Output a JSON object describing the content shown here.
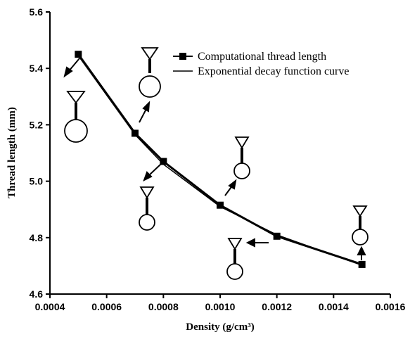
{
  "chart_data": {
    "type": "line",
    "title": "",
    "xlabel": "Density (g/cm³)",
    "ylabel": "Thread length (mm)",
    "xlim": [
      0.0004,
      0.0016
    ],
    "ylim": [
      4.6,
      5.6
    ],
    "xticks": [
      "0.0004",
      "0.0006",
      "0.0008",
      "0.0010",
      "0.0012",
      "0.0014",
      "0.0016"
    ],
    "yticks": [
      "4.6",
      "4.8",
      "5.0",
      "5.2",
      "5.4",
      "5.6"
    ],
    "legend_position": "top-right",
    "series": [
      {
        "name": "Computational thread length",
        "marker": "square",
        "x": [
          0.0005,
          0.0007,
          0.0008,
          0.001,
          0.0012,
          0.0015
        ],
        "y": [
          5.45,
          5.17,
          5.07,
          4.915,
          4.805,
          4.705
        ]
      },
      {
        "name": "Exponential decay function curve",
        "marker": "none",
        "x": [
          0.0005,
          0.0007,
          0.0008,
          0.001,
          0.0012,
          0.0015
        ],
        "y": [
          5.445,
          5.165,
          5.06,
          4.91,
          4.81,
          4.702
        ]
      }
    ]
  }
}
